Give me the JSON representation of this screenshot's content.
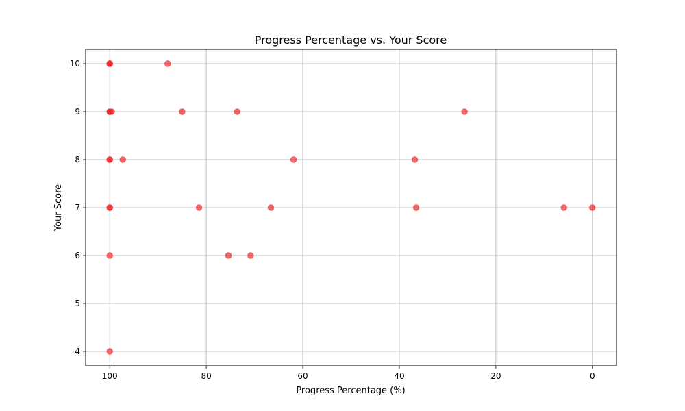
{
  "chart_data": {
    "type": "scatter",
    "title": "Progress Percentage vs. Your Score",
    "xlabel": "Progress Percentage (%)",
    "ylabel": "Your Score",
    "x_inverted": true,
    "xlim": [
      105,
      -5
    ],
    "ylim": [
      3.7,
      10.3
    ],
    "xticks": [
      100,
      80,
      60,
      40,
      20,
      0
    ],
    "yticks": [
      4,
      5,
      6,
      7,
      8,
      9,
      10
    ],
    "grid": true,
    "marker_color": "#e8282b",
    "marker_opacity": 0.7,
    "points": [
      {
        "x": 100,
        "y": 10
      },
      {
        "x": 100,
        "y": 10
      },
      {
        "x": 100,
        "y": 10
      },
      {
        "x": 88,
        "y": 10
      },
      {
        "x": 100,
        "y": 9
      },
      {
        "x": 100,
        "y": 9
      },
      {
        "x": 99.6,
        "y": 9
      },
      {
        "x": 85,
        "y": 9
      },
      {
        "x": 73.6,
        "y": 9
      },
      {
        "x": 26.5,
        "y": 9
      },
      {
        "x": 100,
        "y": 8
      },
      {
        "x": 100,
        "y": 8
      },
      {
        "x": 97.3,
        "y": 8
      },
      {
        "x": 61.9,
        "y": 8
      },
      {
        "x": 36.8,
        "y": 8
      },
      {
        "x": 100,
        "y": 7
      },
      {
        "x": 100,
        "y": 7
      },
      {
        "x": 81.5,
        "y": 7
      },
      {
        "x": 66.6,
        "y": 7
      },
      {
        "x": 36.5,
        "y": 7
      },
      {
        "x": 5.9,
        "y": 7
      },
      {
        "x": 0,
        "y": 7
      },
      {
        "x": 100,
        "y": 6
      },
      {
        "x": 75.4,
        "y": 6
      },
      {
        "x": 70.8,
        "y": 6
      },
      {
        "x": 100,
        "y": 4
      }
    ]
  }
}
